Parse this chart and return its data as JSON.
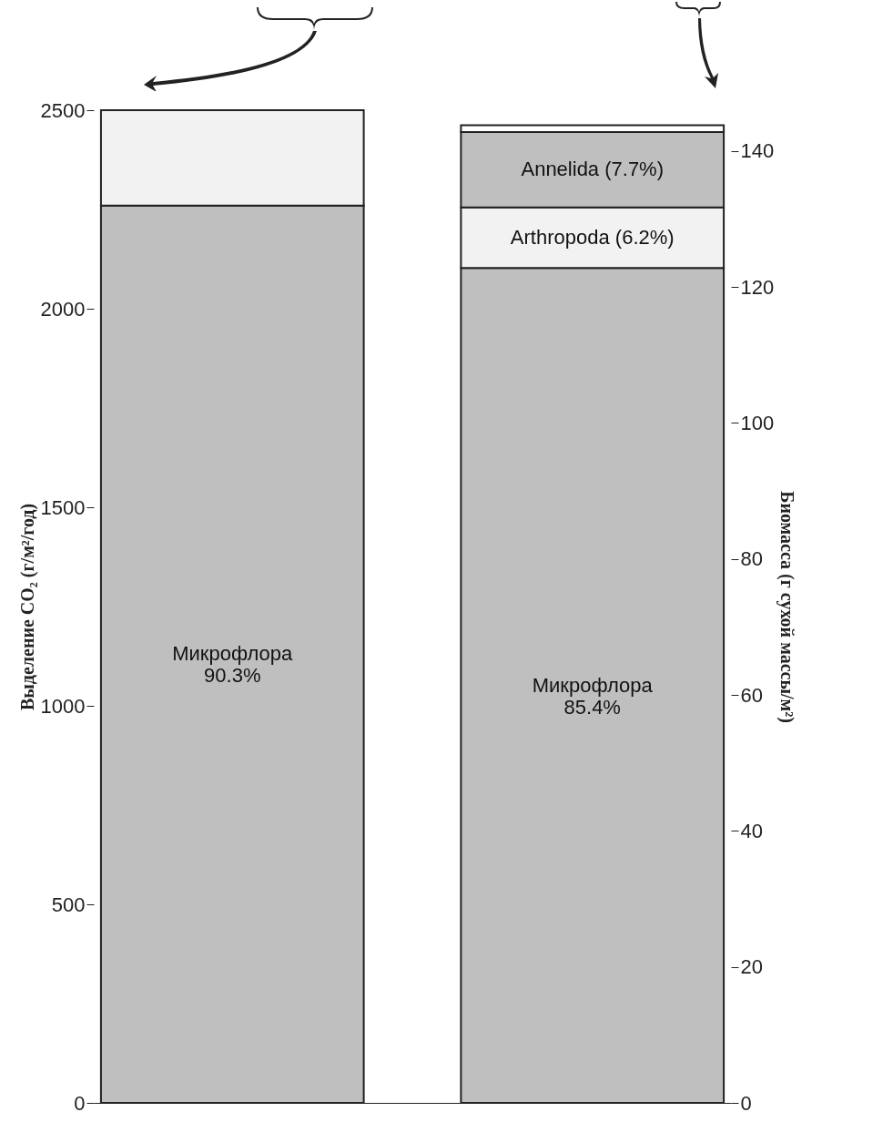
{
  "chart_data": {
    "type": "bar",
    "stacked": true,
    "categories": [
      null,
      null
    ],
    "ylabel": "Выделение CO₂ (г/м²/год)",
    "y2label": "Биомасса (г сухой массы/м²)",
    "ylim": [
      0,
      2500
    ],
    "yticks": [
      0,
      500,
      1000,
      1500,
      2000,
      2500
    ],
    "y2lim": [
      0,
      146
    ],
    "y2ticks": [
      0,
      20,
      40,
      60,
      80,
      100,
      120,
      140
    ],
    "legend": false,
    "series": [
      {
        "name": "Микрофлора\n90.3%",
        "color": "#bfbfbf",
        "axis": "y",
        "values": [
          2260,
          null
        ]
      },
      {
        "color": "#f2f2f2",
        "axis": "y",
        "values": [
          240,
          null
        ]
      },
      {
        "name": "Микрофлора\n85.4%",
        "color": "#bfbfbf",
        "axis": "y2",
        "values": [
          null,
          122.8
        ]
      },
      {
        "name": "Arthropoda (6.2%)",
        "color": "#f2f2f2",
        "axis": "y2",
        "values": [
          null,
          8.9
        ]
      },
      {
        "name": "Annelida (7.7%)",
        "color": "#bfbfbf",
        "axis": "y2",
        "values": [
          null,
          11.1
        ]
      },
      {
        "color": "#ffffff",
        "axis": "y2",
        "values": [
          null,
          1.0
        ]
      }
    ]
  }
}
